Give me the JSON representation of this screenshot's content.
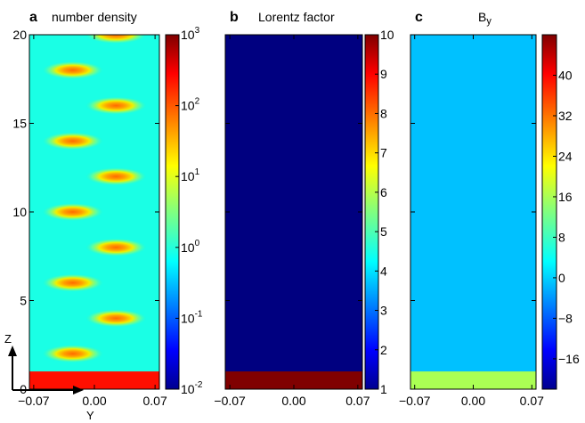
{
  "panels": [
    {
      "letter": "a",
      "title": "number density",
      "field": "number-density",
      "colormap": "jet",
      "colorbar": {
        "scale": "log",
        "range": [
          0.01,
          1000
        ],
        "ticks": [
          {
            "value": 0.01,
            "base": "10",
            "exp": "-2"
          },
          {
            "value": 0.1,
            "base": "10",
            "exp": "-1"
          },
          {
            "value": 1,
            "base": "10",
            "exp": "0"
          },
          {
            "value": 10,
            "base": "10",
            "exp": "1"
          },
          {
            "value": 100,
            "base": "10",
            "exp": "2"
          },
          {
            "value": 1000,
            "base": "10",
            "exp": "3"
          }
        ]
      },
      "background_value": 1,
      "bottom_slab": {
        "z_range": [
          0,
          1
        ],
        "value": 200
      },
      "bunches": [
        {
          "y": 0.025,
          "z": 20,
          "value": 60
        },
        {
          "y": -0.025,
          "z": 18,
          "value": 60
        },
        {
          "y": 0.025,
          "z": 16,
          "value": 60
        },
        {
          "y": -0.025,
          "z": 14,
          "value": 60
        },
        {
          "y": 0.025,
          "z": 12,
          "value": 60
        },
        {
          "y": -0.025,
          "z": 10,
          "value": 60
        },
        {
          "y": 0.025,
          "z": 8,
          "value": 60
        },
        {
          "y": -0.025,
          "z": 6,
          "value": 60
        },
        {
          "y": 0.025,
          "z": 4,
          "value": 60
        },
        {
          "y": -0.025,
          "z": 2,
          "value": 60
        }
      ]
    },
    {
      "letter": "b",
      "title": "Lorentz factor",
      "field": "lorentz-factor",
      "colormap": "jet",
      "colorbar": {
        "scale": "linear",
        "range": [
          1,
          10
        ],
        "ticks": [
          {
            "value": 1,
            "label": "1"
          },
          {
            "value": 2,
            "label": "2"
          },
          {
            "value": 3,
            "label": "3"
          },
          {
            "value": 4,
            "label": "4"
          },
          {
            "value": 5,
            "label": "5"
          },
          {
            "value": 6,
            "label": "6"
          },
          {
            "value": 7,
            "label": "7"
          },
          {
            "value": 8,
            "label": "8"
          },
          {
            "value": 9,
            "label": "9"
          },
          {
            "value": 10,
            "label": "10"
          }
        ]
      },
      "background_value": 1,
      "bottom_slab": {
        "z_range": [
          0,
          1
        ],
        "value": 10
      }
    },
    {
      "letter": "c",
      "title_base": "B",
      "title_sub": "y",
      "field": "By",
      "colormap": "jet",
      "colorbar": {
        "scale": "linear",
        "range": [
          -22,
          48
        ],
        "ticks": [
          {
            "value": -16,
            "label": "−16"
          },
          {
            "value": -8,
            "label": "−8"
          },
          {
            "value": 0,
            "label": "0"
          },
          {
            "value": 8,
            "label": "8"
          },
          {
            "value": 16,
            "label": "16"
          },
          {
            "value": 24,
            "label": "24"
          },
          {
            "value": 32,
            "label": "32"
          },
          {
            "value": 40,
            "label": "40"
          }
        ]
      },
      "background_value": 0,
      "bottom_slab": {
        "z_range": [
          0,
          1
        ],
        "value": 16
      }
    }
  ],
  "axes": {
    "x_range": [
      -0.075,
      0.075
    ],
    "x_ticks": [
      {
        "value": -0.07,
        "label": "−0.07"
      },
      {
        "value": 0,
        "label": "0.00"
      },
      {
        "value": 0.07,
        "label": "0.07"
      }
    ],
    "z_range": [
      0,
      20
    ],
    "z_ticks": [
      {
        "value": 0,
        "label": "0"
      },
      {
        "value": 5,
        "label": "5"
      },
      {
        "value": 10,
        "label": "10"
      },
      {
        "value": 15,
        "label": "15"
      },
      {
        "value": 20,
        "label": "20"
      }
    ],
    "z_arrow_label": "Z",
    "y_arrow_label": "Y"
  },
  "chart_data": [
    {
      "type": "heatmap",
      "title": "number density",
      "colorscale": "log",
      "crange": [
        0.01,
        1000
      ],
      "xlim": [
        -0.075,
        0.075
      ],
      "ylim": [
        0,
        20
      ],
      "background": 1,
      "bottom_slab_value": 200,
      "bunch_centers": [
        [
          0.025,
          20
        ],
        [
          -0.025,
          18
        ],
        [
          0.025,
          16
        ],
        [
          -0.025,
          14
        ],
        [
          0.025,
          12
        ],
        [
          -0.025,
          10
        ],
        [
          0.025,
          8
        ],
        [
          -0.025,
          6
        ],
        [
          0.025,
          4
        ],
        [
          -0.025,
          2
        ]
      ]
    },
    {
      "type": "heatmap",
      "title": "Lorentz factor",
      "colorscale": "linear",
      "crange": [
        1,
        10
      ],
      "xlim": [
        -0.075,
        0.075
      ],
      "ylim": [
        0,
        20
      ],
      "background": 1,
      "bottom_slab_value": 10
    },
    {
      "type": "heatmap",
      "title": "By",
      "colorscale": "linear",
      "crange": [
        -22,
        48
      ],
      "xlim": [
        -0.075,
        0.075
      ],
      "ylim": [
        0,
        20
      ],
      "background": 0,
      "bottom_slab_value": 16
    }
  ]
}
